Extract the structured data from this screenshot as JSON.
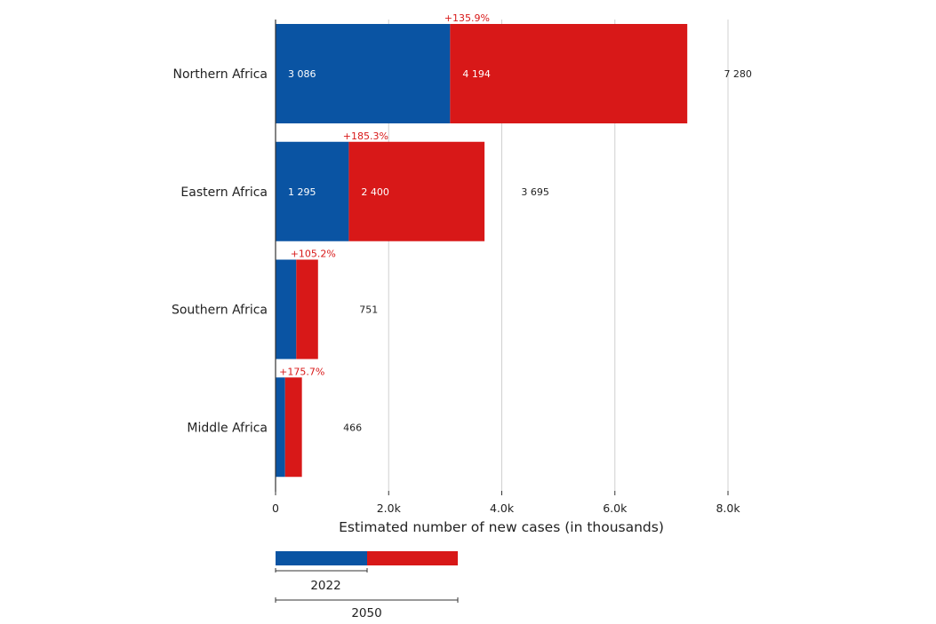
{
  "chart_data": {
    "type": "bar",
    "orientation": "horizontal",
    "stacked": true,
    "categories": [
      "Northern Africa",
      "Eastern Africa",
      "Southern Africa",
      "Middle Africa"
    ],
    "series": [
      {
        "color": "#0a54a3",
        "values": [
          3086,
          1295,
          366,
          169
        ]
      },
      {
        "color": "#d81818",
        "values": [
          4194,
          2400,
          385,
          297
        ]
      }
    ],
    "segment_labels": [
      [
        "3 086",
        "4 194"
      ],
      [
        "1 295",
        "2 400"
      ],
      [
        "",
        ""
      ],
      [
        "",
        ""
      ]
    ],
    "totals": [
      7280,
      3695,
      751,
      466
    ],
    "total_labels": [
      "7 280",
      "3 695",
      "751",
      "466"
    ],
    "pct_increase_labels": [
      "+135.9%",
      "+185.3%",
      "+105.2%",
      "+175.7%"
    ],
    "xlim": [
      0,
      8000
    ],
    "xticks": [
      0,
      2000,
      4000,
      6000,
      8000
    ],
    "xtick_labels": [
      "0",
      "2.0k",
      "4.0k",
      "6.0k",
      "8.0k"
    ],
    "xlabel": "Estimated number of new cases (in thousands)",
    "ylabel": "",
    "title": "",
    "grid": true,
    "legend": {
      "position": "bottom-left",
      "label_2022": "2022",
      "label_2050": "2050"
    },
    "colors": {
      "pct_label": "#d81818",
      "grid": "#d0d0d0",
      "axis": "#333333"
    }
  }
}
